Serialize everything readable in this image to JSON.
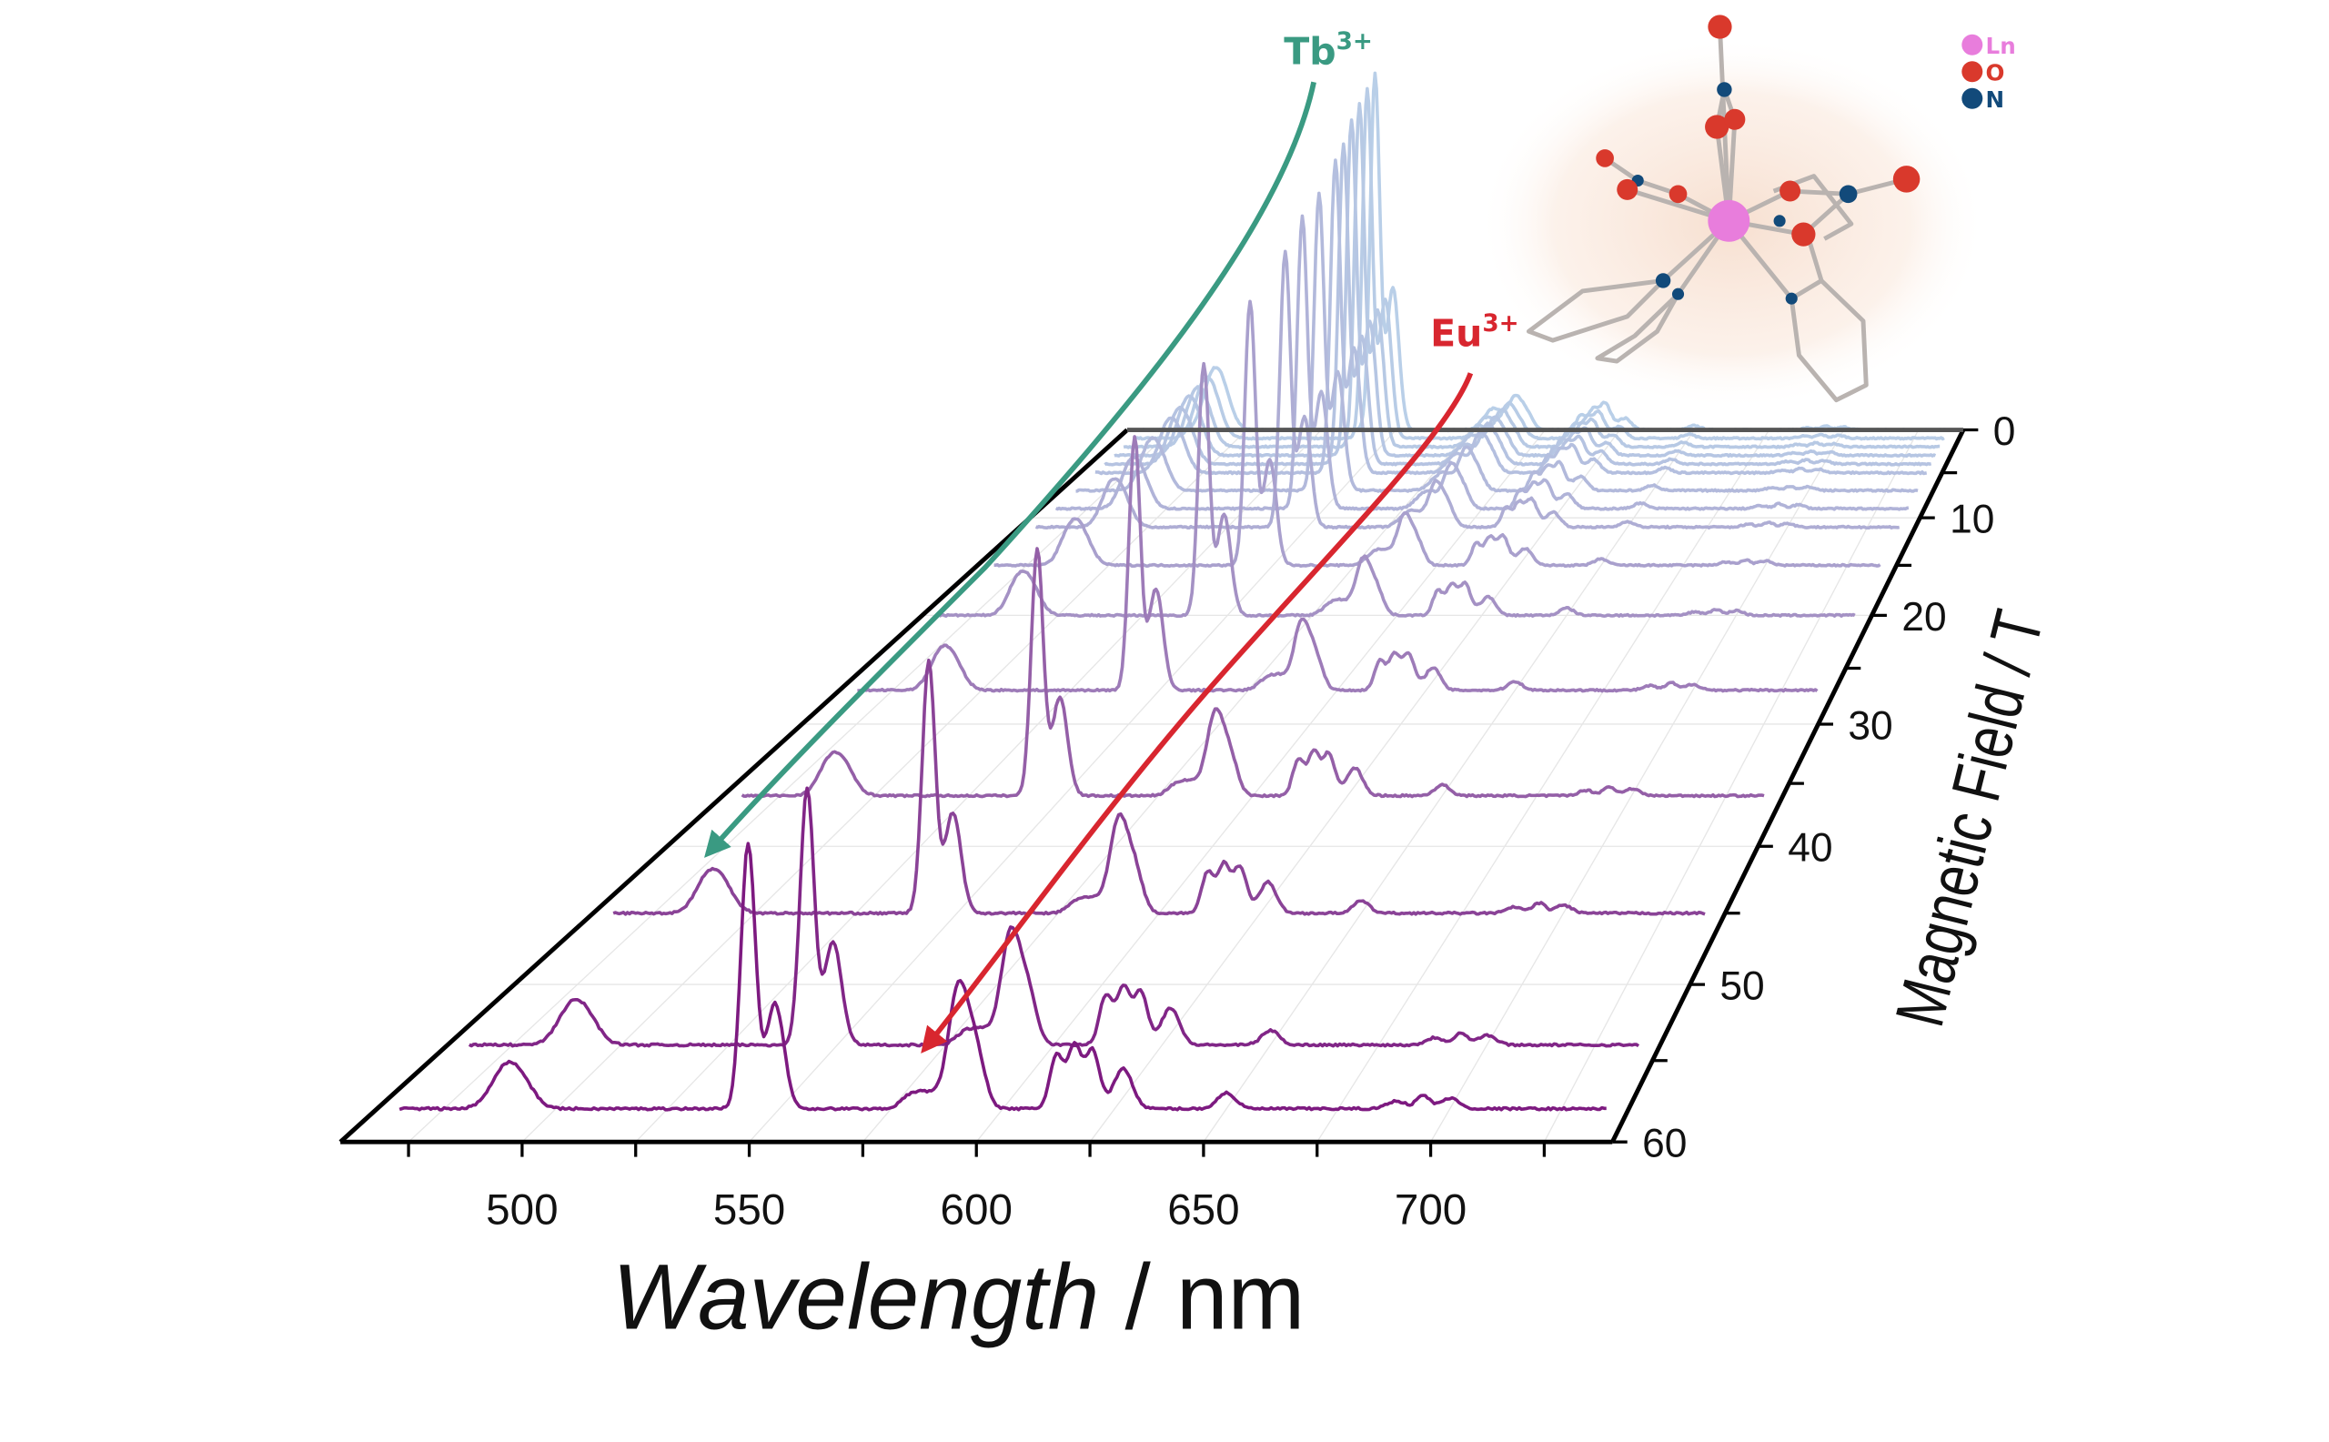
{
  "chart_data": {
    "type": "line",
    "style": "3D waterfall",
    "xlabel": {
      "italic": "Wavelength",
      "rest": " / nm"
    },
    "ylabel": "Magnetic Field / T",
    "xlim": [
      460,
      740
    ],
    "ylim": [
      0,
      60
    ],
    "x_ticks": [
      "500",
      "550",
      "600",
      "650",
      "700"
    ],
    "field_ticks": [
      "0",
      "10",
      "20",
      "30",
      "40",
      "50",
      "60"
    ],
    "grid": true,
    "colors": {
      "high_field": "#7d1a80",
      "low_field": "#b9cfe8",
      "tb_arrow": "#3a9a82",
      "eu_arrow": "#d8262f"
    },
    "peaks": {
      "Tb": [
        [
          488,
          0.12,
          3
        ],
        [
          492,
          0.1,
          3
        ],
        [
          543,
          1.0,
          1.6
        ],
        [
          549,
          0.4,
          2.0
        ],
        [
          583,
          0.06,
          3
        ],
        [
          620,
          0.04,
          3
        ]
      ],
      "Eu": [
        [
          579,
          0.03,
          2
        ],
        [
          590,
          0.45,
          2.2
        ],
        [
          594,
          0.2,
          2
        ],
        [
          612,
          0.2,
          1.5
        ],
        [
          616,
          0.22,
          1.5
        ],
        [
          620,
          0.18,
          1.5
        ],
        [
          627,
          0.15,
          2
        ],
        [
          650,
          0.06,
          2
        ],
        [
          688,
          0.03,
          2
        ],
        [
          694,
          0.05,
          1.5
        ],
        [
          700,
          0.04,
          2
        ]
      ]
    },
    "series": [
      {
        "field": 0,
        "tb": 2.0,
        "eu": 0.4
      },
      {
        "field": 1,
        "tb": 1.95,
        "eu": 0.4
      },
      {
        "field": 2,
        "tb": 1.9,
        "eu": 0.42
      },
      {
        "field": 3,
        "tb": 1.85,
        "eu": 0.43
      },
      {
        "field": 4,
        "tb": 1.75,
        "eu": 0.45
      },
      {
        "field": 5,
        "tb": 1.7,
        "eu": 0.46
      },
      {
        "field": 7,
        "tb": 1.6,
        "eu": 0.48
      },
      {
        "field": 9,
        "tb": 1.55,
        "eu": 0.5
      },
      {
        "field": 11,
        "tb": 1.45,
        "eu": 0.5
      },
      {
        "field": 15,
        "tb": 1.35,
        "eu": 0.55
      },
      {
        "field": 20,
        "tb": 1.25,
        "eu": 0.6
      },
      {
        "field": 27,
        "tb": 1.2,
        "eu": 0.7
      },
      {
        "field": 36,
        "tb": 1.1,
        "eu": 0.8
      },
      {
        "field": 45,
        "tb": 1.05,
        "eu": 0.85
      },
      {
        "field": 54,
        "tb": 1.0,
        "eu": 0.95
      },
      {
        "field": 58,
        "tb": 1.0,
        "eu": 1.0
      }
    ],
    "annotations": {
      "tb": {
        "base": "Tb",
        "sup": "3+"
      },
      "eu": {
        "base": "Eu",
        "sup": "3+"
      }
    }
  },
  "legend": {
    "ln": "Ln",
    "o": "O",
    "n": "N",
    "ln_color": "#e87ddc",
    "o_color": "#d9392c",
    "n_color": "#124a7a"
  }
}
